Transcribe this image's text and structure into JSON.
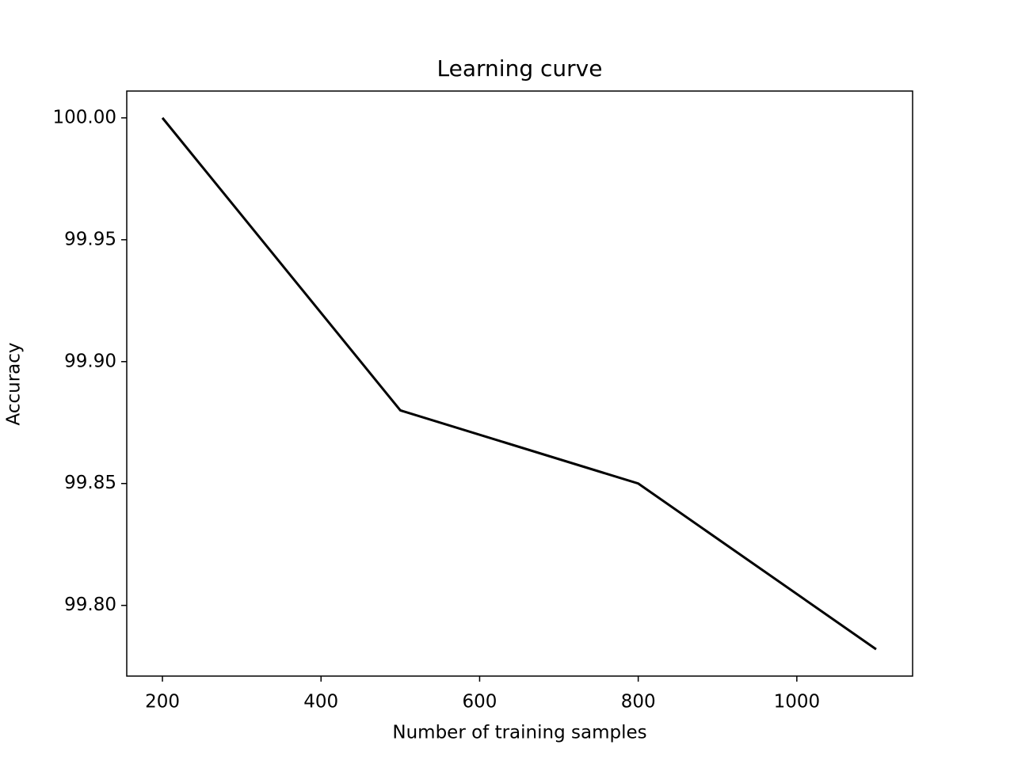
{
  "chart_data": {
    "type": "line",
    "title": "Learning curve",
    "x_label": "Number of training samples",
    "y_label": "Accuracy",
    "x": [
      200,
      500,
      800,
      1100
    ],
    "series": [
      {
        "color": "#000000",
        "values": [
          100.0,
          99.88,
          99.85,
          99.782
        ]
      }
    ],
    "xlim": [
      155,
      1146
    ],
    "ylim": [
      99.771,
      100.011
    ],
    "xticks": [
      200,
      400,
      600,
      800,
      1000
    ],
    "yticks": [
      {
        "value": 99.8,
        "label": "99.80"
      },
      {
        "value": 99.85,
        "label": "99.85"
      },
      {
        "value": 99.9,
        "label": "99.90"
      },
      {
        "value": 99.95,
        "label": "99.95"
      },
      {
        "value": 100.0,
        "label": "100.00"
      }
    ],
    "grid": false
  }
}
